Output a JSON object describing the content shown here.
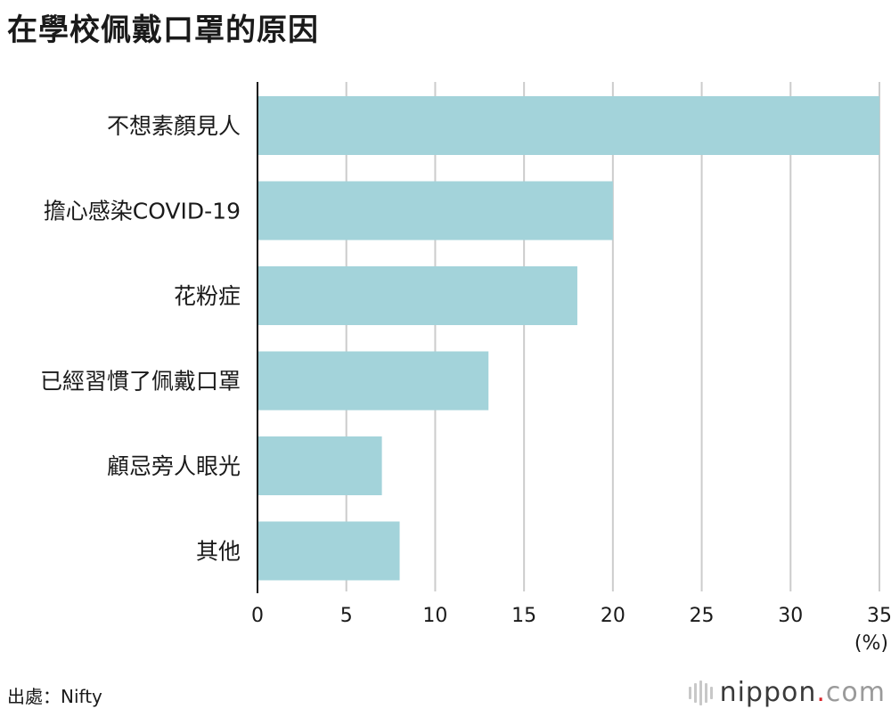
{
  "title": "在學校佩戴口罩的原因",
  "source": "出處：Nifty",
  "brand": {
    "name": "nippon",
    "dot": ".",
    "tld": "com"
  },
  "colors": {
    "bar": "#a3d3da",
    "grid": "#cccccc",
    "axis": "#111111",
    "text": "#1a1a1a"
  },
  "chart_data": {
    "type": "bar",
    "orientation": "horizontal",
    "categories": [
      "不想素顏見人",
      "擔心感染COVID-19",
      "花粉症",
      "已經習慣了佩戴口罩",
      "顧忌旁人眼光",
      "其他"
    ],
    "values": [
      35,
      20,
      18,
      13,
      7,
      8
    ],
    "xticks": [
      0,
      5,
      10,
      15,
      20,
      25,
      30,
      35
    ],
    "xlim": [
      0,
      35
    ],
    "unit_label": "(%)",
    "grid": true
  }
}
